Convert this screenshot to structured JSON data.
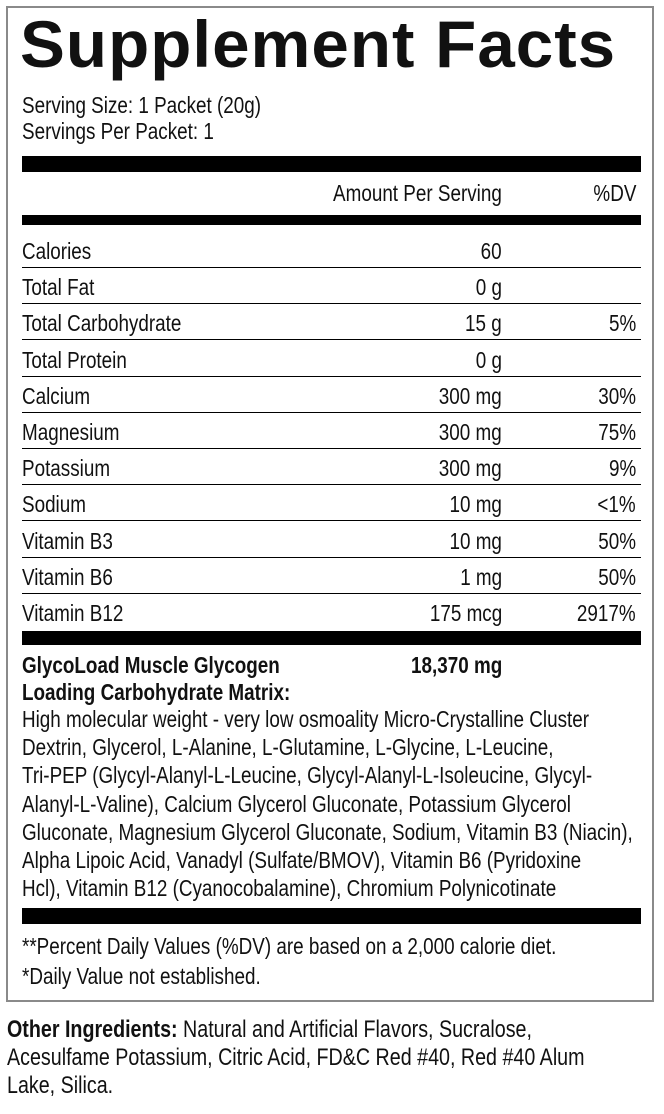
{
  "title": "Supplement Facts",
  "serving_size": "Serving Size: 1 Packet (20g)",
  "servings_per": "Servings Per Packet: 1",
  "header": {
    "amount": "Amount Per Serving",
    "dv": "%DV"
  },
  "rows": [
    {
      "label": "Calories",
      "amount": "60",
      "dv": ""
    },
    {
      "label": "Total Fat",
      "amount": "0 g",
      "dv": ""
    },
    {
      "label": "Total Carbohydrate",
      "amount": "15 g",
      "dv": "5%"
    },
    {
      "label": "Total Protein",
      "amount": "0 g",
      "dv": ""
    },
    {
      "label": "Calcium",
      "amount": "300 mg",
      "dv": "30%"
    },
    {
      "label": "Magnesium",
      "amount": "300 mg",
      "dv": "75%"
    },
    {
      "label": "Potassium",
      "amount": "300 mg",
      "dv": "9%"
    },
    {
      "label": "Sodium",
      "amount": "10 mg",
      "dv": "<1%"
    },
    {
      "label": "Vitamin B3",
      "amount": "10 mg",
      "dv": "50%"
    },
    {
      "label": "Vitamin B6",
      "amount": "1 mg",
      "dv": "50%"
    },
    {
      "label": "Vitamin B12",
      "amount": "175 mcg",
      "dv": "2917%"
    }
  ],
  "blend": {
    "name_line1": "GlycoLoad Muscle Glycogen",
    "name_line2": "Loading Carbohydrate Matrix:",
    "amount": "18,370 mg",
    "ingredients_lines": [
      "High molecular weight - very low osmoality Micro-Crystalline Cluster",
      "Dextrin, Glycerol, L-Alanine, L-Glutamine, L-Glycine, L-Leucine,",
      "Tri-PEP (Glycyl-Alanyl-L-Leucine, Glycyl-Alanyl-L-Isoleucine, Glycyl-",
      "Alanyl-L-Valine), Calcium Glycerol Gluconate, Potassium Glycerol",
      "Gluconate, Magnesium Glycerol Gluconate, Sodium, Vitamin B3 (Niacin),",
      "Alpha Lipoic Acid, Vanadyl (Sulfate/BMOV), Vitamin B6 (Pyridoxine",
      "Hcl), Vitamin B12 (Cyanocobalamine), Chromium Polynicotinate"
    ]
  },
  "footnotes": [
    "**Percent Daily Values (%DV) are based on a 2,000 calorie diet.",
    "*Daily Value not established."
  ],
  "other": {
    "label": "Other Ingredients:",
    "text": " Natural and Artificial Flavors, Sucralose, Acesulfame Potassium, Citric Acid, FD&C Red #40, Red #40 Alum Lake, Silica."
  }
}
